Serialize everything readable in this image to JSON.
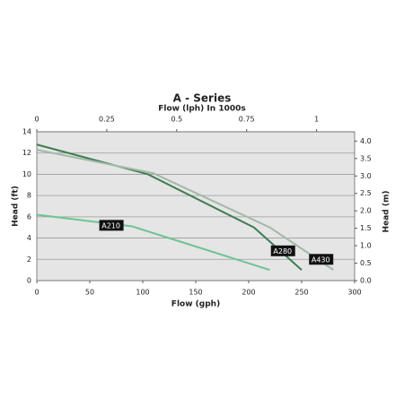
{
  "chart_data": {
    "type": "line",
    "title": "A - Series",
    "x2label": "Flow (lph) In 1000s",
    "xlabel": "Flow (gph)",
    "ylabel": "Head (ft)",
    "y2label": "Head (m)",
    "xlim": [
      0,
      300
    ],
    "xticks": [
      0,
      50,
      100,
      150,
      200,
      250,
      300
    ],
    "x2lim": [
      0,
      1.136
    ],
    "x2ticks": [
      0,
      0.25,
      0.5,
      0.75,
      1
    ],
    "ylim": [
      0,
      14
    ],
    "yticks": [
      0,
      2,
      4,
      6,
      8,
      10,
      12,
      14
    ],
    "y2lim": [
      0,
      4.267
    ],
    "y2ticks": [
      {
        "value": 0,
        "label": "0.0"
      },
      0.5,
      {
        "value": 1,
        "label": "1.0"
      },
      1.5,
      {
        "value": 2,
        "label": "2.0"
      },
      2.5,
      {
        "value": 3,
        "label": "3.0"
      },
      3.5,
      {
        "value": 4,
        "label": "4.0"
      }
    ],
    "grid": true,
    "series": [
      {
        "name": "A210",
        "color": "#6cc393",
        "x": [
          0,
          90,
          220
        ],
        "values": [
          6.2,
          5.1,
          1.0
        ]
      },
      {
        "name": "A280",
        "color": "#3f7d52",
        "x": [
          0,
          105,
          205,
          250
        ],
        "values": [
          12.8,
          10.0,
          5.0,
          1.0
        ]
      },
      {
        "name": "A430",
        "color": "#a3b9a6",
        "x": [
          0,
          110,
          220,
          280
        ],
        "values": [
          12.3,
          10.1,
          5.0,
          1.0
        ]
      }
    ]
  }
}
